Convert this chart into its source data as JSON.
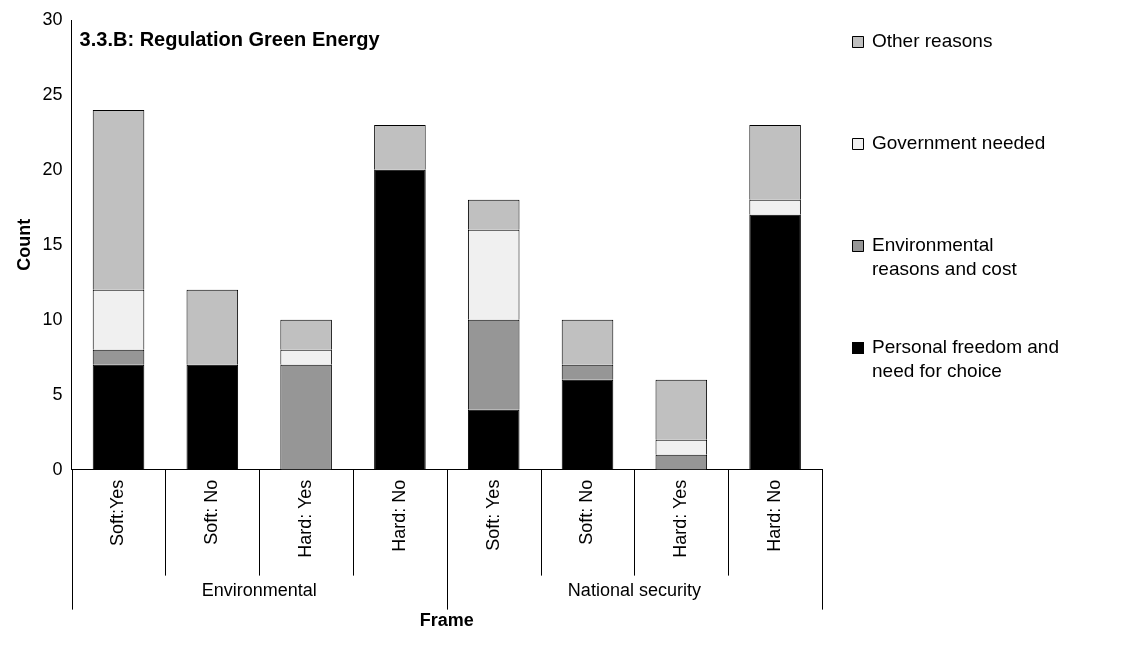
{
  "chart_data": {
    "type": "bar",
    "stacked": true,
    "title": "3.3.B: Regulation Green Energy",
    "xlabel": "Frame",
    "ylabel": "Count",
    "categories": [
      "Soft:Yes",
      "Soft: No",
      "Hard: Yes",
      "Hard: No",
      "Soft: Yes",
      "Soft: No",
      "Hard: Yes",
      "Hard: No"
    ],
    "series": [
      {
        "name": "Personal freedom and need for choice",
        "color": "#000000",
        "values": [
          7,
          7,
          0,
          20,
          4,
          6,
          0,
          17
        ]
      },
      {
        "name": "Environmental reasons and cost",
        "color": "#969696",
        "values": [
          1,
          0,
          7,
          0,
          6,
          1,
          1,
          0
        ]
      },
      {
        "name": "Government needed",
        "color": "#f0f0f0",
        "values": [
          4,
          0,
          1,
          0,
          6,
          0,
          1,
          1
        ]
      },
      {
        "name": "Other reasons",
        "color": "#c0c0c0",
        "values": [
          12,
          5,
          2,
          3,
          2,
          3,
          4,
          5
        ]
      }
    ],
    "annotations": [
      "Environmental",
      "National security"
    ],
    "ylim": [
      0,
      30
    ],
    "yticks": [
      0,
      5,
      10,
      15,
      20,
      25,
      30
    ],
    "grid": false,
    "legend": "right"
  }
}
